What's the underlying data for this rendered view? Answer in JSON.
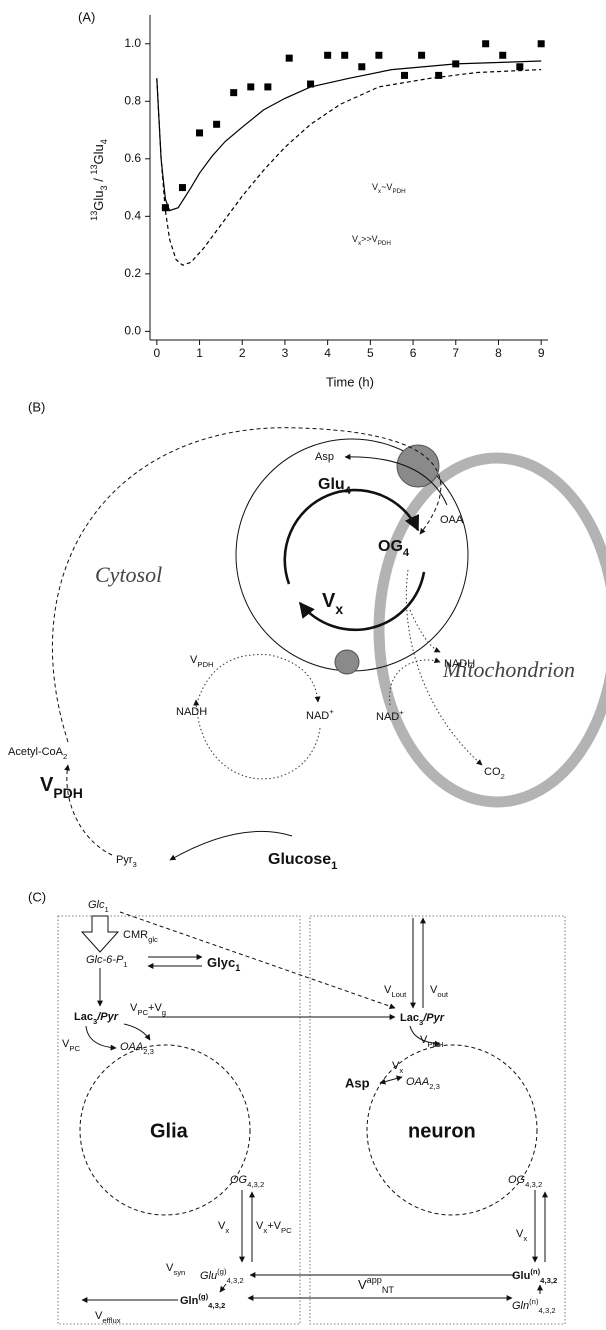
{
  "chart_data": {
    "type": "scatter",
    "panel_label": "(A)",
    "xlabel": "Time (h)",
    "ylabel": [
      {
        "sup": "13"
      },
      {
        "t": "Glu"
      },
      {
        "sub": "3"
      },
      {
        "t": " / "
      },
      {
        "sup": "13"
      },
      {
        "t": "Glu"
      },
      {
        "sub": "4"
      }
    ],
    "xlim": [
      -0.16,
      9.16
    ],
    "ylim": [
      -0.03,
      1.1
    ],
    "xticks": [
      0,
      1,
      2,
      3,
      4,
      5,
      6,
      7,
      8,
      9
    ],
    "yticks": [
      {
        "value": 0,
        "label": "0.0"
      },
      0.2,
      0.4,
      0.6,
      0.8,
      {
        "value": 1,
        "label": "1.0"
      }
    ],
    "series": [
      {
        "style": "markers",
        "color": "#000000",
        "x": [
          0.2,
          0.6,
          1.0,
          1.4,
          1.8,
          2.2,
          2.6,
          3.1,
          3.6,
          4.0,
          4.4,
          4.8,
          5.2,
          5.8,
          6.2,
          6.6,
          7.0,
          7.7,
          8.1,
          8.5,
          9.0
        ],
        "values": [
          0.43,
          0.5,
          0.69,
          0.72,
          0.83,
          0.85,
          0.85,
          0.95,
          0.86,
          0.96,
          0.96,
          0.92,
          0.96,
          0.89,
          0.96,
          0.89,
          0.93,
          1.0,
          0.96,
          0.92,
          1.0
        ]
      },
      {
        "name": [
          {
            "t": "V"
          },
          {
            "sub": "x"
          },
          {
            "t": "~V"
          },
          {
            "sub": "PDH"
          }
        ],
        "style": "solid",
        "color": "#000000",
        "x": [
          0,
          0.1,
          0.2,
          0.3,
          0.5,
          0.8,
          1.0,
          1.3,
          1.6,
          2.0,
          2.5,
          3.0,
          3.6,
          4.5,
          5.5,
          7.0,
          9.0
        ],
        "values": [
          0.88,
          0.6,
          0.46,
          0.42,
          0.43,
          0.5,
          0.55,
          0.61,
          0.66,
          0.71,
          0.77,
          0.81,
          0.85,
          0.88,
          0.91,
          0.93,
          0.94
        ]
      },
      {
        "name": [
          {
            "t": "V"
          },
          {
            "sub": "x"
          },
          {
            "t": ">>V"
          },
          {
            "sub": "PDH"
          }
        ],
        "style": "dashed",
        "color": "#000000",
        "x": [
          0,
          0.1,
          0.2,
          0.3,
          0.45,
          0.6,
          0.8,
          1.1,
          1.5,
          2.0,
          2.5,
          3.0,
          3.6,
          4.3,
          5.2,
          6.4,
          7.5,
          9.0
        ],
        "values": [
          0.88,
          0.6,
          0.42,
          0.32,
          0.25,
          0.23,
          0.24,
          0.29,
          0.37,
          0.47,
          0.56,
          0.64,
          0.72,
          0.79,
          0.85,
          0.88,
          0.9,
          0.91
        ]
      }
    ]
  },
  "panel_b": {
    "panel_label": "(B)",
    "asp": "Asp",
    "glu": [
      {
        "t": "Glu"
      },
      {
        "sub": "4"
      }
    ],
    "oaa": "OAA",
    "og": [
      {
        "t": "OG"
      },
      {
        "sub": "4"
      }
    ],
    "vx": [
      {
        "t": "V"
      },
      {
        "sub": "x"
      }
    ],
    "cytosol": "Cytosol",
    "mitochondrion": "Mitochondrion",
    "vpdh_small": [
      {
        "t": "V"
      },
      {
        "sub": "PDH"
      }
    ],
    "nadh_left": "NADH",
    "nad_left": [
      {
        "t": "NAD"
      },
      {
        "sup": "+"
      }
    ],
    "nadh_right": "NADH",
    "nad_right": [
      {
        "t": "NAD"
      },
      {
        "sup": "+"
      }
    ],
    "co2": [
      {
        "t": "CO"
      },
      {
        "sub": "2"
      }
    ],
    "acetyl_coa": [
      {
        "t": "Acetyl-CoA"
      },
      {
        "sub": "2"
      }
    ],
    "vpdh": [
      {
        "t": "V"
      },
      {
        "sub": "PDH"
      }
    ],
    "pyr": [
      {
        "t": "Pyr"
      },
      {
        "sub": "3"
      }
    ],
    "glucose": [
      {
        "t": "Glucose"
      },
      {
        "sub": "1"
      }
    ]
  },
  "panel_c": {
    "panel_label": "(C)",
    "glc": [
      {
        "i": "Glc"
      },
      {
        "sub": "1"
      }
    ],
    "cmr": [
      {
        "t": "CMR"
      },
      {
        "sub": "glc"
      }
    ],
    "glc6p": [
      {
        "i": "Glc-6-P"
      },
      {
        "sub": "1"
      }
    ],
    "glyc": [
      {
        "t": "Glyc"
      },
      {
        "sub": "1"
      }
    ],
    "glia_lac": [
      {
        "t": "Lac"
      },
      {
        "sub": "3"
      },
      {
        "i": "/Pyr"
      }
    ],
    "v_pc_g": [
      {
        "t": "V"
      },
      {
        "sub": "PC"
      },
      {
        "t": "+V"
      },
      {
        "sub": "g"
      }
    ],
    "v_pc": [
      {
        "t": "V"
      },
      {
        "sub": "PC"
      }
    ],
    "glia_oaa": [
      {
        "i": "OAA"
      },
      {
        "sub": "2,3"
      }
    ],
    "glia": "Glia",
    "glia_og": [
      {
        "i": "OG"
      },
      {
        "sub": "4,3,2"
      }
    ],
    "glia_vx": [
      {
        "t": "V"
      },
      {
        "sub": "x"
      }
    ],
    "glia_vx_pc": [
      {
        "t": "V"
      },
      {
        "sub": "x"
      },
      {
        "t": "+V"
      },
      {
        "sub": "PC"
      }
    ],
    "glu_g": [
      {
        "i": "Glu"
      },
      {
        "sup": "(g)"
      },
      {
        "sub": "4,3,2"
      }
    ],
    "v_syn": [
      {
        "t": "V"
      },
      {
        "sub": "syn"
      }
    ],
    "gln_g": [
      {
        "t": "Gln"
      },
      {
        "sup": "(g)"
      },
      {
        "sub": "4,3,2"
      }
    ],
    "v_efflux": [
      {
        "t": "V"
      },
      {
        "sub": "efflux"
      }
    ],
    "v_lout": [
      {
        "t": "V"
      },
      {
        "sub": "Lout"
      }
    ],
    "v_out": [
      {
        "t": "V"
      },
      {
        "sub": "out"
      }
    ],
    "neuron_lac": [
      {
        "t": "Lac"
      },
      {
        "sub": "3"
      },
      {
        "i": "/Pyr"
      }
    ],
    "v_pdh": [
      {
        "t": "V"
      },
      {
        "sub": "PDH"
      }
    ],
    "neuron_vx": [
      {
        "t": "V"
      },
      {
        "sub": "x"
      }
    ],
    "asp": "Asp",
    "neuron_oaa": [
      {
        "i": "OAA"
      },
      {
        "sub": "2,3"
      }
    ],
    "neuron": "neuron",
    "neuron_og": [
      {
        "i": "OG"
      },
      {
        "sub": "4,3,2"
      }
    ],
    "neuron_vx2": [
      {
        "t": "V"
      },
      {
        "sub": "x"
      }
    ],
    "glu_n": [
      {
        "t": "Glu"
      },
      {
        "sup": "(n)"
      },
      {
        "sub": "4,3,2"
      }
    ],
    "v_nt": [
      {
        "t": "V"
      },
      {
        "sup": "app"
      },
      {
        "sub": "NT"
      }
    ],
    "gln_n": [
      {
        "i": "Gln"
      },
      {
        "sup": "(n)"
      },
      {
        "sub": "4,3,2"
      }
    ]
  }
}
